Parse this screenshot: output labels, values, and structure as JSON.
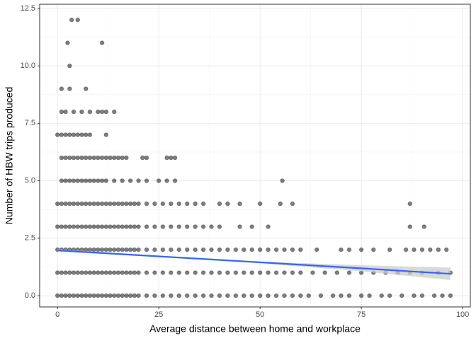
{
  "chart_data": {
    "type": "scatter",
    "x_label": "Average distance between home and workplace",
    "y_label": "Number of HBW trips produced",
    "xlim": [
      -4.4,
      101.9
    ],
    "ylim": [
      -0.49,
      12.68
    ],
    "xticks": [
      0,
      25,
      50,
      75,
      100
    ],
    "yticks": [
      {
        "value": 0,
        "label": "0.0"
      },
      {
        "value": 2.5,
        "label": "2.5"
      },
      {
        "value": 5,
        "label": "5.0"
      },
      {
        "value": 7.5,
        "label": "7.5"
      },
      {
        "value": 10,
        "label": "10.0"
      },
      {
        "value": 12.5,
        "label": "12.5"
      }
    ],
    "grid": true,
    "color": "#000000",
    "alpha": 0.5,
    "series": [
      {
        "x": [
          0,
          1,
          2,
          3,
          4,
          5,
          6,
          7,
          8,
          9,
          10,
          11,
          12,
          13,
          14,
          15,
          16,
          17,
          18,
          19,
          20,
          22,
          24,
          26,
          28,
          30,
          32,
          34,
          36,
          38,
          40,
          42,
          44,
          46,
          48,
          50,
          52,
          54,
          56,
          58,
          60,
          62,
          65,
          68,
          70,
          72,
          75,
          77,
          80,
          82,
          85,
          88,
          90,
          93,
          95,
          97
        ],
        "values": [
          0,
          0,
          0,
          0,
          0,
          0,
          0,
          0,
          0,
          0,
          0,
          0,
          0,
          0,
          0,
          0,
          0,
          0,
          0,
          0,
          0,
          0,
          0,
          0,
          0,
          0,
          0,
          0,
          0,
          0,
          0,
          0,
          0,
          0,
          0,
          0,
          0,
          0,
          0,
          0,
          0,
          0,
          0,
          0,
          0,
          0,
          0,
          0,
          0,
          0,
          0,
          0,
          0,
          0,
          0,
          0
        ]
      },
      {
        "x": [
          0,
          1,
          2,
          3,
          4,
          5,
          6,
          7,
          8,
          9,
          10,
          11,
          12,
          13,
          14,
          15,
          16,
          17,
          18,
          19,
          20,
          22,
          24,
          26,
          28,
          30,
          32,
          34,
          36,
          38,
          40,
          42,
          44,
          46,
          48,
          50,
          52,
          54,
          56,
          58,
          60,
          63,
          66,
          69,
          72,
          75,
          78,
          81,
          84,
          87,
          90,
          94,
          97
        ],
        "values": [
          1,
          1,
          1,
          1,
          1,
          1,
          1,
          1,
          1,
          1,
          1,
          1,
          1,
          1,
          1,
          1,
          1,
          1,
          1,
          1,
          1,
          1,
          1,
          1,
          1,
          1,
          1,
          1,
          1,
          1,
          1,
          1,
          1,
          1,
          1,
          1,
          1,
          1,
          1,
          1,
          1,
          1,
          1,
          1,
          1,
          1,
          1,
          1,
          1,
          1,
          1,
          1,
          1
        ]
      },
      {
        "x": [
          0,
          1,
          2,
          3,
          4,
          5,
          6,
          7,
          8,
          9,
          10,
          11,
          12,
          13,
          14,
          15,
          16,
          17,
          18,
          19,
          20,
          22,
          24,
          26,
          28,
          30,
          32,
          34,
          36,
          38,
          40,
          42,
          44,
          46,
          48,
          50,
          52,
          54,
          56,
          58,
          60,
          64,
          70,
          72,
          75,
          78,
          82,
          86,
          88,
          90,
          92,
          94,
          96
        ],
        "values": [
          2,
          2,
          2,
          2,
          2,
          2,
          2,
          2,
          2,
          2,
          2,
          2,
          2,
          2,
          2,
          2,
          2,
          2,
          2,
          2,
          2,
          2,
          2,
          2,
          2,
          2,
          2,
          2,
          2,
          2,
          2,
          2,
          2,
          2,
          2,
          2,
          2,
          2,
          2,
          2,
          2,
          2,
          2,
          2,
          2,
          2,
          2,
          2,
          2,
          2,
          2,
          2,
          2
        ]
      },
      {
        "x": [
          0,
          1,
          2,
          3,
          4,
          5,
          6,
          7,
          8,
          9,
          10,
          11,
          12,
          13,
          14,
          15,
          16,
          17,
          18,
          19,
          20,
          22,
          24,
          26,
          28,
          30,
          32,
          34,
          36,
          38,
          40,
          45,
          48,
          52,
          87,
          90.5
        ],
        "values": [
          3,
          3,
          3,
          3,
          3,
          3,
          3,
          3,
          3,
          3,
          3,
          3,
          3,
          3,
          3,
          3,
          3,
          3,
          3,
          3,
          3,
          3,
          3,
          3,
          3,
          3,
          3,
          3,
          3,
          3,
          3,
          3,
          3,
          3,
          3,
          3
        ]
      },
      {
        "x": [
          0,
          1,
          2,
          3,
          4,
          5,
          6,
          7,
          8,
          9,
          10,
          11,
          12,
          13,
          14,
          15,
          16,
          17,
          18,
          19,
          20,
          22,
          24,
          26,
          28,
          30,
          32,
          34,
          36,
          40,
          42,
          45,
          50,
          55,
          58,
          87
        ],
        "values": [
          4,
          4,
          4,
          4,
          4,
          4,
          4,
          4,
          4,
          4,
          4,
          4,
          4,
          4,
          4,
          4,
          4,
          4,
          4,
          4,
          4,
          4,
          4,
          4,
          4,
          4,
          4,
          4,
          4,
          4,
          4,
          4,
          4,
          4,
          4,
          4
        ]
      },
      {
        "x": [
          1,
          2,
          3,
          4,
          5,
          6,
          7,
          8,
          9,
          10,
          11,
          12,
          14,
          16,
          18,
          20,
          22,
          25,
          27,
          29,
          55.5
        ],
        "values": [
          5,
          5,
          5,
          5,
          5,
          5,
          5,
          5,
          5,
          5,
          5,
          5,
          5,
          5,
          5,
          5,
          5,
          5,
          5,
          5,
          5
        ]
      },
      {
        "x": [
          1,
          2,
          3,
          4,
          5,
          6,
          7,
          8,
          9,
          10,
          11,
          12,
          13,
          14,
          15,
          16,
          17,
          21,
          22,
          27,
          28,
          29
        ],
        "values": [
          6,
          6,
          6,
          6,
          6,
          6,
          6,
          6,
          6,
          6,
          6,
          6,
          6,
          6,
          6,
          6,
          6,
          6,
          6,
          6,
          6,
          6
        ]
      },
      {
        "x": [
          0,
          1,
          2,
          3,
          4,
          5,
          6,
          7,
          8,
          12
        ],
        "values": [
          7,
          7,
          7,
          7,
          7,
          7,
          7,
          7,
          7,
          7
        ]
      },
      {
        "x": [
          1,
          2,
          4,
          6,
          8,
          10,
          11,
          12,
          14
        ],
        "values": [
          8,
          8,
          8,
          8,
          8,
          8,
          8,
          8,
          8
        ]
      },
      {
        "x": [
          1,
          3,
          7
        ],
        "values": [
          9,
          9,
          9
        ]
      },
      {
        "x": [
          3
        ],
        "values": [
          10
        ]
      },
      {
        "x": [
          2.5,
          11
        ],
        "values": [
          11,
          11
        ]
      },
      {
        "x": [
          3.5,
          5
        ],
        "values": [
          12,
          12
        ]
      }
    ],
    "fit": {
      "color": "#3366ff",
      "band_color": "#cccccc",
      "x": [
        0,
        25,
        50,
        75,
        97
      ],
      "values": [
        1.97,
        1.71,
        1.45,
        1.19,
        0.95
      ],
      "lower": [
        1.92,
        1.68,
        1.41,
        1.06,
        0.68
      ],
      "upper": [
        2.02,
        1.74,
        1.49,
        1.32,
        1.22
      ]
    }
  }
}
